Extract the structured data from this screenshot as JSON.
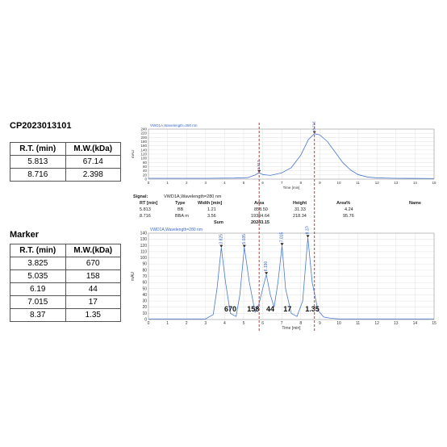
{
  "sample": {
    "id": "CP2023013101",
    "headers": [
      "R.T. (min)",
      "M.W.(kDa)"
    ],
    "rows": [
      [
        "5.813",
        "67.14"
      ],
      [
        "8.716",
        "2.398"
      ]
    ]
  },
  "marker": {
    "title": "Marker",
    "headers": [
      "R.T. (min)",
      "M.W.(kDa)"
    ],
    "rows": [
      [
        "3.825",
        "670"
      ],
      [
        "5.035",
        "158"
      ],
      [
        "6.19",
        "44"
      ],
      [
        "7.015",
        "17"
      ],
      [
        "8.37",
        "1.35"
      ]
    ]
  },
  "peak_report": {
    "signal_label": "Signal:",
    "signal_value": "VWD1A,Wavelength=280 nm",
    "headers": [
      "RT [min]",
      "Type",
      "Width [min]",
      "Area",
      "Height",
      "Area%",
      "Name"
    ],
    "rows": [
      [
        "5.813",
        "BB",
        "1.21",
        "858.50",
        "31.33",
        "4.24",
        ""
      ],
      [
        "8.716",
        "BBA m",
        "3.56",
        "19384.64",
        "218.34",
        "95.76",
        ""
      ]
    ],
    "sum_label": "Sum",
    "sum_value": "20243.15"
  },
  "chart_data": [
    {
      "type": "line",
      "title": "VWD1A,Wavelength=280 nm",
      "xlabel": "Time [min]",
      "ylabel": "mAU",
      "xlim": [
        0,
        15
      ],
      "ylim": [
        0,
        240
      ],
      "xticks": [
        0,
        1,
        2,
        3,
        4,
        5,
        6,
        7,
        8,
        9,
        10,
        11,
        12,
        13,
        14,
        15
      ],
      "yticks": [
        0,
        20,
        40,
        60,
        80,
        100,
        120,
        140,
        160,
        180,
        200,
        220,
        240
      ],
      "grid": true,
      "peak_labels": [
        {
          "x": 5.813,
          "y": 31.33,
          "label": "5.813"
        },
        {
          "x": 8.716,
          "y": 218.34,
          "label": "8.716"
        }
      ],
      "series": [
        {
          "x": [
            0,
            3,
            4.5,
            5.2,
            5.6,
            5.813,
            6.0,
            6.4,
            7.0,
            7.5,
            8.0,
            8.4,
            8.716,
            9.0,
            9.4,
            9.8,
            10.2,
            10.6,
            11.0,
            11.5,
            12,
            13,
            15
          ],
          "values": [
            4,
            4,
            5,
            7,
            20,
            31,
            22,
            18,
            30,
            55,
            115,
            190,
            218,
            212,
            180,
            130,
            80,
            45,
            22,
            10,
            6,
            4,
            3
          ]
        }
      ]
    },
    {
      "type": "line",
      "title": "VWD1A,Wavelength=280 nm",
      "xlabel": "Time [min]",
      "ylabel": "mAU",
      "xlim": [
        0,
        15
      ],
      "ylim": [
        0,
        140
      ],
      "xticks": [
        0,
        1,
        2,
        3,
        4,
        5,
        6,
        7,
        8,
        9,
        10,
        11,
        12,
        13,
        14,
        15
      ],
      "yticks": [
        0,
        10,
        20,
        30,
        40,
        50,
        60,
        70,
        80,
        90,
        100,
        110,
        120,
        130,
        140
      ],
      "grid": true,
      "peak_labels": [
        {
          "x": 3.825,
          "y": 117,
          "label": "3.825"
        },
        {
          "x": 5.035,
          "y": 117,
          "label": "5.035"
        },
        {
          "x": 6.19,
          "y": 73,
          "label": "6.190"
        },
        {
          "x": 7.015,
          "y": 120,
          "label": "7.015"
        },
        {
          "x": 8.37,
          "y": 133,
          "label": "8.370"
        }
      ],
      "annotations": [
        "670",
        "158",
        "44",
        "17",
        "1.35"
      ],
      "series": [
        {
          "x": [
            0,
            3.0,
            3.4,
            3.6,
            3.825,
            4.05,
            4.3,
            4.6,
            4.8,
            5.035,
            5.3,
            5.6,
            5.8,
            6.0,
            6.19,
            6.4,
            6.6,
            6.8,
            7.015,
            7.2,
            7.5,
            7.8,
            8.1,
            8.37,
            8.6,
            8.9,
            9.2,
            9.6,
            10,
            15
          ],
          "values": [
            1,
            1,
            8,
            50,
            117,
            60,
            10,
            5,
            40,
            117,
            60,
            12,
            25,
            50,
            73,
            40,
            20,
            60,
            120,
            50,
            10,
            5,
            30,
            133,
            60,
            15,
            4,
            2,
            1,
            1
          ]
        }
      ]
    }
  ],
  "reference_lines_x": [
    5.813,
    8.716
  ]
}
